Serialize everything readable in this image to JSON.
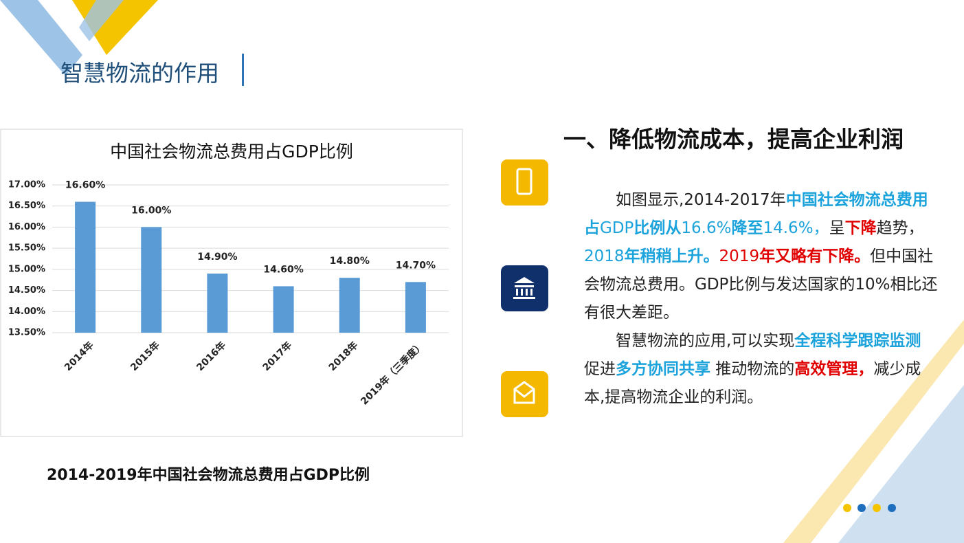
{
  "slide_title": "智慧物流的作用",
  "heading": "一、降低物流成本，提高企业利润",
  "chart_data": {
    "type": "bar",
    "title": "中国社会物流总费用占GDP比例",
    "categories": [
      "2014年",
      "2015年",
      "2016年",
      "2017年",
      "2018年",
      "2019年（三季度）"
    ],
    "values": [
      16.6,
      16.0,
      14.9,
      14.6,
      14.8,
      14.7
    ],
    "value_labels": [
      "16.60%",
      "16.00%",
      "14.90%",
      "14.60%",
      "14.80%",
      "14.70%"
    ],
    "color": "#5b9bd5",
    "ylim": [
      13.5,
      17
    ],
    "yticks": [
      {
        "value": 13.5,
        "label": "13.50%"
      },
      {
        "value": 14,
        "label": "14.00%"
      },
      {
        "value": 14.5,
        "label": "14.50%"
      },
      {
        "value": 15,
        "label": "15.00%"
      },
      {
        "value": 15.5,
        "label": "15.50%"
      },
      {
        "value": 16,
        "label": "16.00%"
      },
      {
        "value": 16.5,
        "label": "16.50%"
      },
      {
        "value": 17,
        "label": "17.00%"
      }
    ],
    "grid": true
  },
  "caption": "2014-2019年中国社会物流总费用占GDP比例",
  "paragraphs": [
    {
      "runs": [
        {
          "text": "如图显示,2014-2017年",
          "color": "#222222",
          "bold": false
        },
        {
          "text": "中国社会物流总费用占",
          "color": "#1ca3dc",
          "bold": true
        },
        {
          "text": "GDP",
          "color": "#1ca3dc",
          "bold": false
        },
        {
          "text": "比例从",
          "color": "#1ca3dc",
          "bold": true
        },
        {
          "text": "16.6%",
          "color": "#1ca3dc",
          "bold": false
        },
        {
          "text": "降至",
          "color": "#1ca3dc",
          "bold": true
        },
        {
          "text": "14.6%，",
          "color": "#1ca3dc",
          "bold": false
        },
        {
          "text": "呈",
          "color": "#222222",
          "bold": false
        },
        {
          "text": "下降",
          "color": "#e00000",
          "bold": true
        },
        {
          "text": "趋势，",
          "color": "#222222",
          "bold": false
        },
        {
          "text": "2018",
          "color": "#1ca3dc",
          "bold": false
        },
        {
          "text": "年稍稍上升。",
          "color": "#1ca3dc",
          "bold": true
        },
        {
          "text": "2019",
          "color": "#e00000",
          "bold": false
        },
        {
          "text": "年又略有下降。",
          "color": "#e00000",
          "bold": true
        },
        {
          "text": "但中国社会物流总费用。GDP比例与发达国家的10%相比还有很大差距。",
          "color": "#222222",
          "bold": false
        }
      ]
    },
    {
      "runs": [
        {
          "text": "智慧物流的应用,可以实现",
          "color": "#222222",
          "bold": false
        },
        {
          "text": "全程科学跟踪监测",
          "color": "#1ca3dc",
          "bold": true
        },
        {
          "text": " 促进",
          "color": "#222222",
          "bold": false
        },
        {
          "text": "多方协同共享",
          "color": "#1ca3dc",
          "bold": true
        },
        {
          "text": " 推动物流的",
          "color": "#222222",
          "bold": false
        },
        {
          "text": "高效管理，",
          "color": "#e00000",
          "bold": true
        },
        {
          "text": "减少成本,提高物流企业的利润。",
          "color": "#222222",
          "bold": false
        }
      ]
    }
  ]
}
